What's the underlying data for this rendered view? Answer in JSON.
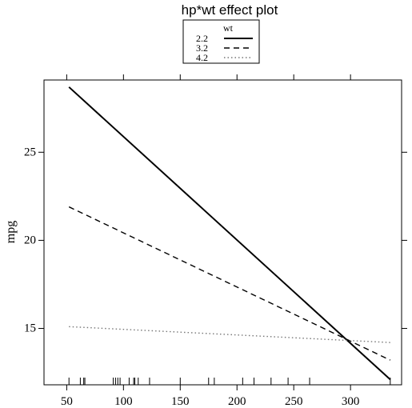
{
  "chart_data": {
    "type": "line",
    "title": "hp*wt effect plot",
    "xlabel": "",
    "ylabel": "mpg",
    "xlim": [
      30,
      345
    ],
    "ylim": [
      11.8,
      29.1
    ],
    "x_ticks": [
      50,
      100,
      150,
      200,
      250,
      300
    ],
    "y_ticks": [
      15,
      20,
      25
    ],
    "legend": {
      "title": "wt",
      "position": "top-center"
    },
    "x": [
      52,
      335
    ],
    "series": [
      {
        "name": "2.2",
        "style": "solid",
        "values": [
          28.7,
          12.1
        ]
      },
      {
        "name": "3.2",
        "style": "dashed",
        "values": [
          21.9,
          13.2
        ]
      },
      {
        "name": "4.2",
        "style": "dotted",
        "values": [
          15.1,
          14.2
        ]
      }
    ],
    "rug": [
      52,
      62,
      65,
      66,
      91,
      93,
      95,
      97,
      105,
      109,
      110,
      113,
      123,
      150,
      175,
      180,
      205,
      215,
      230,
      245,
      264,
      335
    ]
  }
}
